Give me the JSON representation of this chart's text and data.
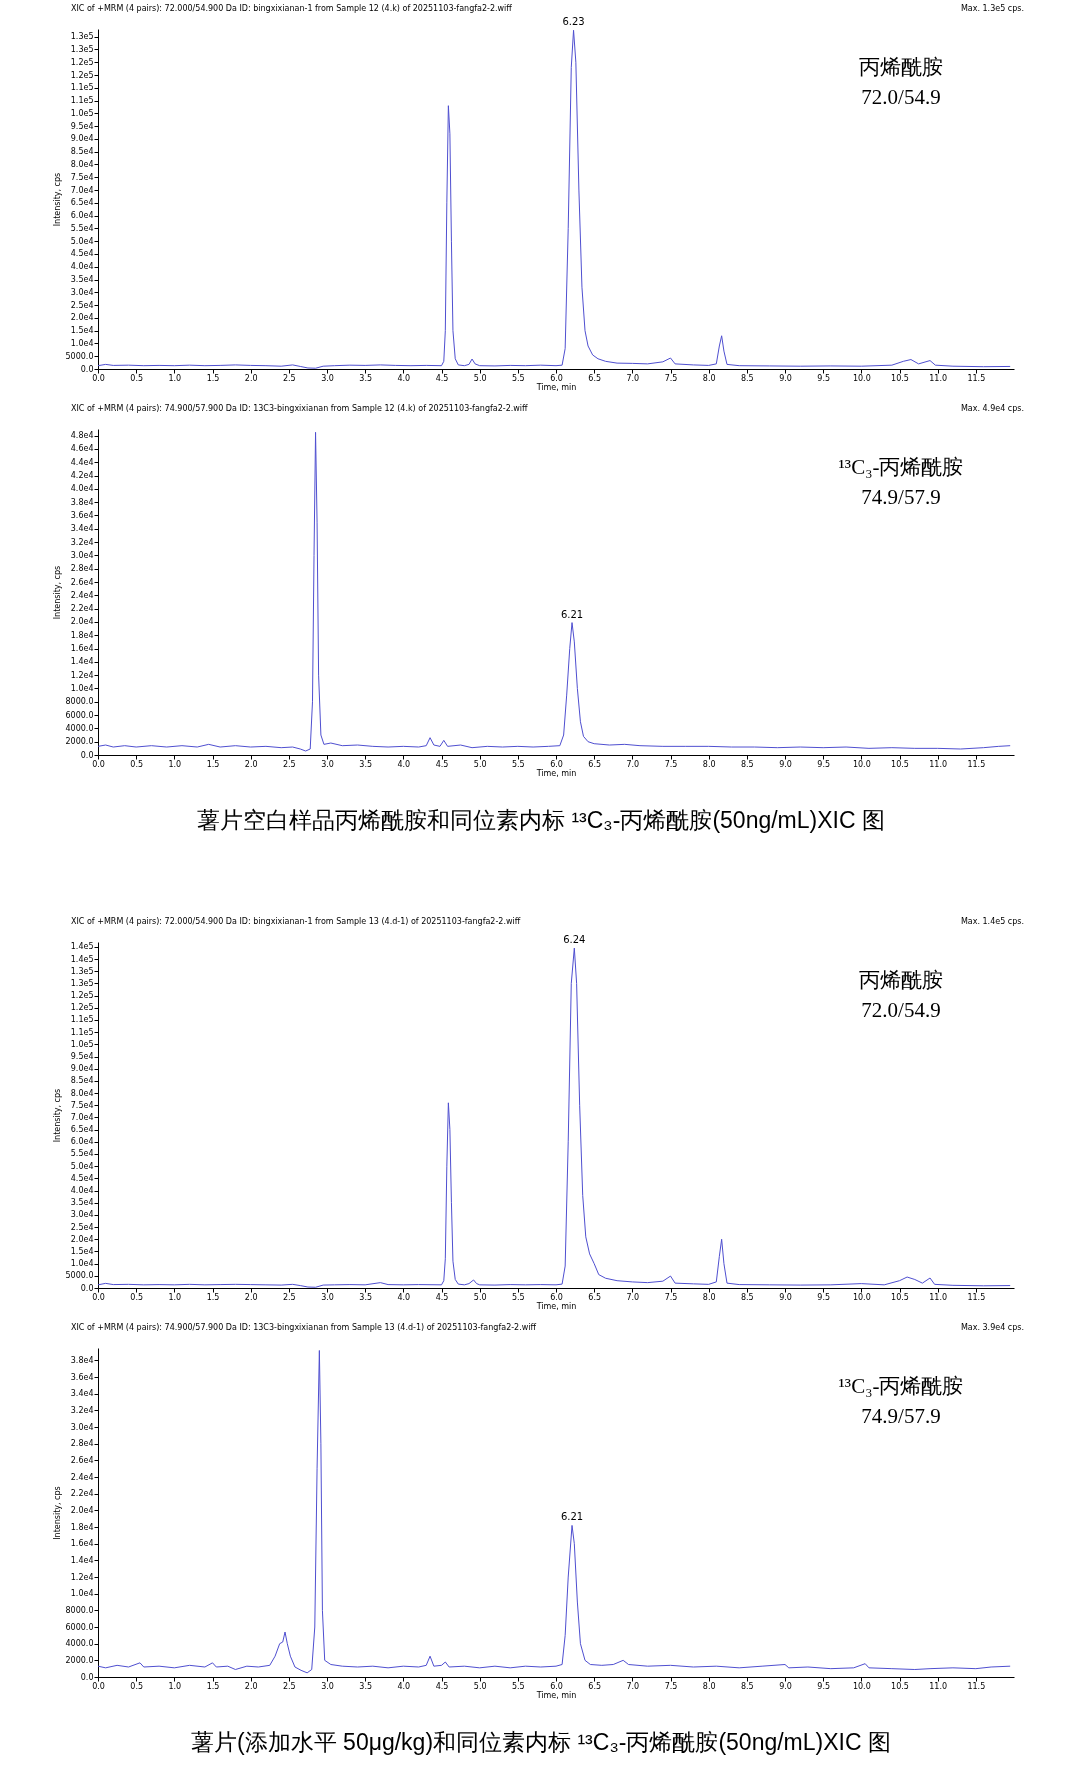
{
  "chart_data": [
    {
      "type": "line",
      "title": "XIC of +MRM (4 pairs): 72.000/54.900 Da ID: bingxixianan-1 from Sample 12 (4.k) of 20251103-fangfa2-2.wiff",
      "subtitle": "Max. 1.3e5 cps.",
      "xlabel": "Time, min",
      "ylabel": "Intensity, cps",
      "grid": false,
      "xlim": [
        0,
        12.0
      ],
      "xticks": [
        {
          "value": 0,
          "label": "0.0"
        },
        0.5,
        {
          "value": 1,
          "label": "1.0"
        },
        1.5,
        {
          "value": 2,
          "label": "2.0"
        },
        2.5,
        {
          "value": 3,
          "label": "3.0"
        },
        3.5,
        {
          "value": 4,
          "label": "4.0"
        },
        4.5,
        {
          "value": 5,
          "label": "5.0"
        },
        5.5,
        {
          "value": 6,
          "label": "6.0"
        },
        6.5,
        {
          "value": 7,
          "label": "7.0"
        },
        7.5,
        {
          "value": 8,
          "label": "8.0"
        },
        8.5,
        {
          "value": 9,
          "label": "9.0"
        },
        9.5,
        {
          "value": 10,
          "label": "10.0"
        },
        10.5,
        {
          "value": 11,
          "label": "11.0"
        },
        11.5
      ],
      "ylim": [
        0,
        133000
      ],
      "yticks": [
        {
          "value": 0,
          "label": "0.0"
        },
        {
          "value": 5000,
          "label": "5000.0"
        },
        {
          "value": 10000,
          "label": "1.0e4"
        },
        {
          "value": 15000,
          "label": "1.5e4"
        },
        {
          "value": 20000,
          "label": "2.0e4"
        },
        {
          "value": 25000,
          "label": "2.5e4"
        },
        {
          "value": 30000,
          "label": "3.0e4"
        },
        {
          "value": 35000,
          "label": "3.5e4"
        },
        {
          "value": 40000,
          "label": "4.0e4"
        },
        {
          "value": 45000,
          "label": "4.5e4"
        },
        {
          "value": 50000,
          "label": "5.0e4"
        },
        {
          "value": 55000,
          "label": "5.5e4"
        },
        {
          "value": 60000,
          "label": "6.0e4"
        },
        {
          "value": 65000,
          "label": "6.5e4"
        },
        {
          "value": 70000,
          "label": "7.0e4"
        },
        {
          "value": 75000,
          "label": "7.5e4"
        },
        {
          "value": 80000,
          "label": "8.0e4"
        },
        {
          "value": 85000,
          "label": "8.5e4"
        },
        {
          "value": 90000,
          "label": "9.0e4"
        },
        {
          "value": 95000,
          "label": "9.5e4"
        },
        {
          "value": 100000,
          "label": "1.0e5"
        },
        {
          "value": 105000,
          "label": "1.1e5"
        },
        {
          "value": 110000,
          "label": "1.1e5"
        },
        {
          "value": 115000,
          "label": "1.2e5"
        },
        {
          "value": 120000,
          "label": "1.2e5"
        },
        {
          "value": 125000,
          "label": "1.3e5"
        },
        {
          "value": 130000,
          "label": "1.3e5"
        }
      ],
      "series": [
        {
          "color": "#4f4fd0",
          "x": [
            0.0,
            0.1,
            0.2,
            0.4,
            0.6,
            0.8,
            1.0,
            1.2,
            1.4,
            1.6,
            1.8,
            2.0,
            2.2,
            2.4,
            2.55,
            2.65,
            2.75,
            2.85,
            2.95,
            3.1,
            3.3,
            3.5,
            3.7,
            3.9,
            4.1,
            4.3,
            4.5,
            4.53,
            4.55,
            4.57,
            4.59,
            4.61,
            4.63,
            4.65,
            4.68,
            4.72,
            4.8,
            4.86,
            4.9,
            4.94,
            5.0,
            5.2,
            5.4,
            5.6,
            5.8,
            6.0,
            6.08,
            6.12,
            6.16,
            6.2,
            6.23,
            6.26,
            6.3,
            6.34,
            6.38,
            6.42,
            6.48,
            6.55,
            6.65,
            6.8,
            7.0,
            7.2,
            7.4,
            7.5,
            7.56,
            7.8,
            8.0,
            8.1,
            8.14,
            8.17,
            8.2,
            8.24,
            8.4,
            8.8,
            9.2,
            9.6,
            10.0,
            10.4,
            10.55,
            10.65,
            10.75,
            10.9,
            10.97,
            11.2,
            11.6,
            11.95
          ],
          "values": [
            1300,
            1800,
            1400,
            1500,
            1300,
            1400,
            1300,
            1500,
            1300,
            1400,
            1600,
            1400,
            1300,
            1100,
            1600,
            1000,
            400,
            300,
            1100,
            1300,
            1500,
            1400,
            1600,
            1400,
            1300,
            1400,
            1300,
            3000,
            15000,
            65000,
            103000,
            92000,
            50000,
            15000,
            4000,
            1600,
            1300,
            1800,
            3900,
            2000,
            1300,
            1200,
            1400,
            1300,
            1500,
            1300,
            1500,
            8000,
            55000,
            118000,
            132500,
            120000,
            70000,
            32000,
            15000,
            9000,
            5500,
            4000,
            3000,
            2300,
            2200,
            2000,
            2800,
            4300,
            2000,
            1600,
            1400,
            2000,
            9000,
            13000,
            7000,
            1800,
            1300,
            1200,
            1100,
            1200,
            1100,
            1500,
            3000,
            3700,
            2000,
            3300,
            1500,
            1100,
            900,
            1000
          ]
        }
      ],
      "annotations": [
        {
          "text": "6.23",
          "x": 6.23,
          "y": 132500
        },
        "丙烯酰胺",
        "72.0/54.9"
      ]
    },
    {
      "type": "line",
      "title": "XIC of +MRM (4 pairs): 74.900/57.900 Da ID: 13C3-bingxixianan from Sample 12 (4.k) of 20251103-fangfa2-2.wiff",
      "subtitle": "Max. 4.9e4 cps.",
      "xlabel": "Time, min",
      "ylabel": "Intensity, cps",
      "grid": false,
      "xlim": [
        0,
        12.0
      ],
      "xticks": [
        {
          "value": 0,
          "label": "0.0"
        },
        0.5,
        {
          "value": 1,
          "label": "1.0"
        },
        1.5,
        {
          "value": 2,
          "label": "2.0"
        },
        2.5,
        {
          "value": 3,
          "label": "3.0"
        },
        3.5,
        {
          "value": 4,
          "label": "4.0"
        },
        4.5,
        {
          "value": 5,
          "label": "5.0"
        },
        5.5,
        {
          "value": 6,
          "label": "6.0"
        },
        6.5,
        {
          "value": 7,
          "label": "7.0"
        },
        7.5,
        {
          "value": 8,
          "label": "8.0"
        },
        8.5,
        {
          "value": 9,
          "label": "9.0"
        },
        9.5,
        {
          "value": 10,
          "label": "10.0"
        },
        10.5,
        {
          "value": 11,
          "label": "11.0"
        },
        11.5
      ],
      "ylim": [
        0,
        49000
      ],
      "yticks": [
        {
          "value": 0,
          "label": "0.0"
        },
        {
          "value": 2000,
          "label": "2000.0"
        },
        {
          "value": 4000,
          "label": "4000.0"
        },
        {
          "value": 6000,
          "label": "6000.0"
        },
        {
          "value": 8000,
          "label": "8000.0"
        },
        {
          "value": 10000,
          "label": "1.0e4"
        },
        {
          "value": 12000,
          "label": "1.2e4"
        },
        {
          "value": 14000,
          "label": "1.4e4"
        },
        {
          "value": 16000,
          "label": "1.6e4"
        },
        {
          "value": 18000,
          "label": "1.8e4"
        },
        {
          "value": 20000,
          "label": "2.0e4"
        },
        {
          "value": 22000,
          "label": "2.2e4"
        },
        {
          "value": 24000,
          "label": "2.4e4"
        },
        {
          "value": 26000,
          "label": "2.6e4"
        },
        {
          "value": 28000,
          "label": "2.8e4"
        },
        {
          "value": 30000,
          "label": "3.0e4"
        },
        {
          "value": 32000,
          "label": "3.2e4"
        },
        {
          "value": 34000,
          "label": "3.4e4"
        },
        {
          "value": 36000,
          "label": "3.6e4"
        },
        {
          "value": 38000,
          "label": "3.8e4"
        },
        {
          "value": 40000,
          "label": "4.0e4"
        },
        {
          "value": 42000,
          "label": "4.2e4"
        },
        {
          "value": 44000,
          "label": "4.4e4"
        },
        {
          "value": 46000,
          "label": "4.6e4"
        },
        {
          "value": 48000,
          "label": "4.8e4"
        }
      ],
      "series": [
        {
          "color": "#4f4fd0",
          "x": [
            0.0,
            0.1,
            0.2,
            0.35,
            0.5,
            0.7,
            0.9,
            1.1,
            1.3,
            1.45,
            1.6,
            1.8,
            2.0,
            2.2,
            2.4,
            2.55,
            2.65,
            2.72,
            2.78,
            2.81,
            2.83,
            2.85,
            2.87,
            2.89,
            2.92,
            2.96,
            3.05,
            3.2,
            3.4,
            3.6,
            3.8,
            4.0,
            4.2,
            4.3,
            4.35,
            4.4,
            4.48,
            4.53,
            4.58,
            4.75,
            4.9,
            5.1,
            5.3,
            5.5,
            5.7,
            5.9,
            6.05,
            6.1,
            6.14,
            6.18,
            6.21,
            6.24,
            6.28,
            6.32,
            6.36,
            6.42,
            6.5,
            6.7,
            6.9,
            7.1,
            7.4,
            7.7,
            8.0,
            8.3,
            8.6,
            8.9,
            9.2,
            9.5,
            9.8,
            10.1,
            10.4,
            10.7,
            11.0,
            11.3,
            11.6,
            11.8,
            11.95
          ],
          "values": [
            1300,
            1500,
            1200,
            1400,
            1200,
            1400,
            1200,
            1400,
            1200,
            1600,
            1200,
            1400,
            1200,
            1300,
            1100,
            1200,
            900,
            600,
            900,
            8000,
            30000,
            48500,
            35000,
            12000,
            3000,
            1600,
            1800,
            1400,
            1500,
            1300,
            1200,
            1300,
            1200,
            1400,
            2600,
            1500,
            1300,
            2200,
            1300,
            1500,
            1100,
            1300,
            1200,
            1300,
            1200,
            1300,
            1400,
            3000,
            9000,
            16000,
            19900,
            17000,
            10000,
            5000,
            2800,
            2000,
            1700,
            1500,
            1600,
            1400,
            1300,
            1300,
            1300,
            1200,
            1200,
            1100,
            1200,
            1100,
            1200,
            1000,
            1100,
            1000,
            1000,
            900,
            1100,
            1300,
            1400
          ]
        }
      ],
      "annotations": [
        {
          "text": "6.21",
          "x": 6.21,
          "y": 19900
        },
        "¹³C₃-丙烯酰胺",
        "74.9/57.9",
        "薯片空白样品丙烯酰胺和同位素内标 ¹³C₃-丙烯酰胺(50ng/mL)XIC 图"
      ]
    },
    {
      "type": "line",
      "title": "XIC of +MRM (4 pairs): 72.000/54.900 Da ID: bingxixianan-1 from Sample 13 (4.d-1) of 20251103-fangfa2-2.wiff",
      "subtitle": "Max. 1.4e5 cps.",
      "xlabel": "Time, min",
      "ylabel": "Intensity, cps",
      "grid": false,
      "xlim": [
        0,
        12.0
      ],
      "xticks": [
        {
          "value": 0,
          "label": "0.0"
        },
        0.5,
        {
          "value": 1,
          "label": "1.0"
        },
        1.5,
        {
          "value": 2,
          "label": "2.0"
        },
        2.5,
        {
          "value": 3,
          "label": "3.0"
        },
        3.5,
        {
          "value": 4,
          "label": "4.0"
        },
        4.5,
        {
          "value": 5,
          "label": "5.0"
        },
        5.5,
        {
          "value": 6,
          "label": "6.0"
        },
        6.5,
        {
          "value": 7,
          "label": "7.0"
        },
        7.5,
        {
          "value": 8,
          "label": "8.0"
        },
        8.5,
        {
          "value": 9,
          "label": "9.0"
        },
        9.5,
        {
          "value": 10,
          "label": "10.0"
        },
        10.5,
        {
          "value": 11,
          "label": "11.0"
        },
        11.5
      ],
      "ylim": [
        0,
        142000
      ],
      "yticks": [
        {
          "value": 0,
          "label": "0.0"
        },
        {
          "value": 5000,
          "label": "5000.0"
        },
        {
          "value": 10000,
          "label": "1.0e4"
        },
        {
          "value": 15000,
          "label": "1.5e4"
        },
        {
          "value": 20000,
          "label": "2.0e4"
        },
        {
          "value": 25000,
          "label": "2.5e4"
        },
        {
          "value": 30000,
          "label": "3.0e4"
        },
        {
          "value": 35000,
          "label": "3.5e4"
        },
        {
          "value": 40000,
          "label": "4.0e4"
        },
        {
          "value": 45000,
          "label": "4.5e4"
        },
        {
          "value": 50000,
          "label": "5.0e4"
        },
        {
          "value": 55000,
          "label": "5.5e4"
        },
        {
          "value": 60000,
          "label": "6.0e4"
        },
        {
          "value": 65000,
          "label": "6.5e4"
        },
        {
          "value": 70000,
          "label": "7.0e4"
        },
        {
          "value": 75000,
          "label": "7.5e4"
        },
        {
          "value": 80000,
          "label": "8.0e4"
        },
        {
          "value": 85000,
          "label": "8.5e4"
        },
        {
          "value": 90000,
          "label": "9.0e4"
        },
        {
          "value": 95000,
          "label": "9.5e4"
        },
        {
          "value": 100000,
          "label": "1.0e5"
        },
        {
          "value": 105000,
          "label": "1.1e5"
        },
        {
          "value": 110000,
          "label": "1.1e5"
        },
        {
          "value": 115000,
          "label": "1.2e5"
        },
        {
          "value": 120000,
          "label": "1.2e5"
        },
        {
          "value": 125000,
          "label": "1.3e5"
        },
        {
          "value": 130000,
          "label": "1.3e5"
        },
        {
          "value": 135000,
          "label": "1.4e5"
        },
        {
          "value": 140000,
          "label": "1.4e5"
        }
      ],
      "series": [
        {
          "color": "#4f4fd0",
          "x": [
            0.0,
            0.1,
            0.2,
            0.4,
            0.6,
            0.8,
            1.0,
            1.2,
            1.4,
            1.6,
            1.8,
            2.0,
            2.2,
            2.4,
            2.55,
            2.65,
            2.75,
            2.85,
            2.95,
            3.1,
            3.3,
            3.5,
            3.7,
            3.8,
            4.0,
            4.2,
            4.5,
            4.53,
            4.55,
            4.57,
            4.59,
            4.61,
            4.63,
            4.65,
            4.68,
            4.72,
            4.8,
            4.86,
            4.92,
            4.96,
            5.0,
            5.2,
            5.4,
            5.6,
            5.8,
            6.0,
            6.08,
            6.12,
            6.16,
            6.2,
            6.24,
            6.27,
            6.31,
            6.35,
            6.39,
            6.44,
            6.5,
            6.56,
            6.65,
            6.8,
            7.0,
            7.2,
            7.4,
            7.5,
            7.56,
            7.8,
            8.0,
            8.1,
            8.14,
            8.17,
            8.2,
            8.24,
            8.4,
            8.8,
            9.2,
            9.6,
            10.0,
            10.3,
            10.5,
            10.6,
            10.7,
            10.8,
            10.9,
            10.96,
            11.2,
            11.6,
            11.95
          ],
          "values": [
            1300,
            1900,
            1400,
            1500,
            1300,
            1400,
            1300,
            1500,
            1300,
            1400,
            1500,
            1400,
            1300,
            1200,
            1500,
            1000,
            400,
            300,
            1200,
            1300,
            1400,
            1300,
            2200,
            1400,
            1300,
            1400,
            1300,
            3000,
            12000,
            50000,
            76000,
            65000,
            35000,
            11000,
            3500,
            1600,
            1300,
            1800,
            3300,
            1800,
            1300,
            1200,
            1400,
            1300,
            1400,
            1300,
            1600,
            9000,
            60000,
            125000,
            139500,
            125000,
            75000,
            38000,
            21000,
            14000,
            10000,
            5500,
            4000,
            3000,
            2500,
            2200,
            2800,
            4900,
            2000,
            1700,
            1500,
            2500,
            13000,
            20000,
            10000,
            2000,
            1400,
            1300,
            1200,
            1300,
            1800,
            1300,
            3000,
            4500,
            3500,
            2000,
            4100,
            1500,
            1100,
            900,
            1000
          ]
        }
      ],
      "annotations": [
        {
          "text": "6.24",
          "x": 6.24,
          "y": 139500
        },
        "丙烯酰胺",
        "72.0/54.9"
      ]
    },
    {
      "type": "line",
      "title": "XIC of +MRM (4 pairs): 74.900/57.900 Da ID: 13C3-bingxixianan from Sample 13 (4.d-1) of 20251103-fangfa2-2.wiff",
      "subtitle": "Max. 3.9e4 cps.",
      "xlabel": "Time, min",
      "ylabel": "Intensity, cps",
      "grid": false,
      "xlim": [
        0,
        12.0
      ],
      "xticks": [
        {
          "value": 0,
          "label": "0.0"
        },
        0.5,
        {
          "value": 1,
          "label": "1.0"
        },
        1.5,
        {
          "value": 2,
          "label": "2.0"
        },
        2.5,
        {
          "value": 3,
          "label": "3.0"
        },
        3.5,
        {
          "value": 4,
          "label": "4.0"
        },
        4.5,
        {
          "value": 5,
          "label": "5.0"
        },
        5.5,
        {
          "value": 6,
          "label": "6.0"
        },
        6.5,
        {
          "value": 7,
          "label": "7.0"
        },
        7.5,
        {
          "value": 8,
          "label": "8.0"
        },
        8.5,
        {
          "value": 9,
          "label": "9.0"
        },
        9.5,
        {
          "value": 10,
          "label": "10.0"
        },
        10.5,
        {
          "value": 11,
          "label": "11.0"
        },
        11.5
      ],
      "ylim": [
        0,
        39500
      ],
      "yticks": [
        {
          "value": 0,
          "label": "0.0"
        },
        {
          "value": 2000,
          "label": "2000.0"
        },
        {
          "value": 4000,
          "label": "4000.0"
        },
        {
          "value": 6000,
          "label": "6000.0"
        },
        {
          "value": 8000,
          "label": "8000.0"
        },
        {
          "value": 10000,
          "label": "1.0e4"
        },
        {
          "value": 12000,
          "label": "1.2e4"
        },
        {
          "value": 14000,
          "label": "1.4e4"
        },
        {
          "value": 16000,
          "label": "1.6e4"
        },
        {
          "value": 18000,
          "label": "1.8e4"
        },
        {
          "value": 20000,
          "label": "2.0e4"
        },
        {
          "value": 22000,
          "label": "2.2e4"
        },
        {
          "value": 24000,
          "label": "2.4e4"
        },
        {
          "value": 26000,
          "label": "2.6e4"
        },
        {
          "value": 28000,
          "label": "2.8e4"
        },
        {
          "value": 30000,
          "label": "3.0e4"
        },
        {
          "value": 32000,
          "label": "3.2e4"
        },
        {
          "value": 34000,
          "label": "3.4e4"
        },
        {
          "value": 36000,
          "label": "3.6e4"
        },
        {
          "value": 38000,
          "label": "3.8e4"
        }
      ],
      "series": [
        {
          "color": "#4f4fd0",
          "x": [
            0.0,
            0.1,
            0.25,
            0.4,
            0.55,
            0.6,
            0.8,
            1.0,
            1.2,
            1.4,
            1.5,
            1.55,
            1.7,
            1.8,
            1.95,
            2.1,
            2.25,
            2.32,
            2.38,
            2.42,
            2.45,
            2.48,
            2.52,
            2.58,
            2.66,
            2.74,
            2.8,
            2.84,
            2.87,
            2.9,
            2.92,
            2.94,
            2.97,
            3.05,
            3.2,
            3.4,
            3.6,
            3.8,
            4.0,
            4.2,
            4.3,
            4.35,
            4.4,
            4.5,
            4.55,
            4.6,
            4.8,
            5.0,
            5.2,
            5.4,
            5.6,
            5.8,
            6.0,
            6.08,
            6.12,
            6.16,
            6.21,
            6.24,
            6.28,
            6.32,
            6.38,
            6.45,
            6.6,
            6.75,
            6.88,
            6.95,
            7.2,
            7.5,
            7.8,
            8.1,
            8.4,
            8.7,
            9.0,
            9.05,
            9.3,
            9.6,
            9.9,
            10.05,
            10.1,
            10.4,
            10.7,
            10.9,
            11.2,
            11.5,
            11.7,
            11.95
          ],
          "values": [
            1300,
            1100,
            1400,
            1200,
            1700,
            1200,
            1300,
            1100,
            1400,
            1200,
            1700,
            1200,
            1300,
            900,
            1300,
            1200,
            1400,
            2500,
            4000,
            4200,
            5400,
            4000,
            2500,
            1200,
            800,
            500,
            900,
            6000,
            25000,
            39200,
            28000,
            8000,
            2000,
            1500,
            1300,
            1200,
            1300,
            1100,
            1300,
            1200,
            1400,
            2500,
            1300,
            1400,
            1800,
            1200,
            1300,
            1100,
            1300,
            1100,
            1300,
            1200,
            1300,
            1500,
            5000,
            12000,
            18200,
            16000,
            9000,
            4000,
            2000,
            1500,
            1400,
            1500,
            2000,
            1500,
            1300,
            1400,
            1200,
            1300,
            1100,
            1300,
            1500,
            1100,
            1200,
            1000,
            1100,
            1600,
            1100,
            1000,
            900,
            1000,
            1100,
            1000,
            1200,
            1300
          ]
        }
      ],
      "annotations": [
        {
          "text": "6.21",
          "x": 6.21,
          "y": 18200
        },
        "¹³C₃-丙烯酰胺",
        "74.9/57.9",
        "薯片(添加水平 50μg/kg)和同位素内标 ¹³C₃-丙烯酰胺(50ng/mL)XIC 图"
      ]
    }
  ]
}
